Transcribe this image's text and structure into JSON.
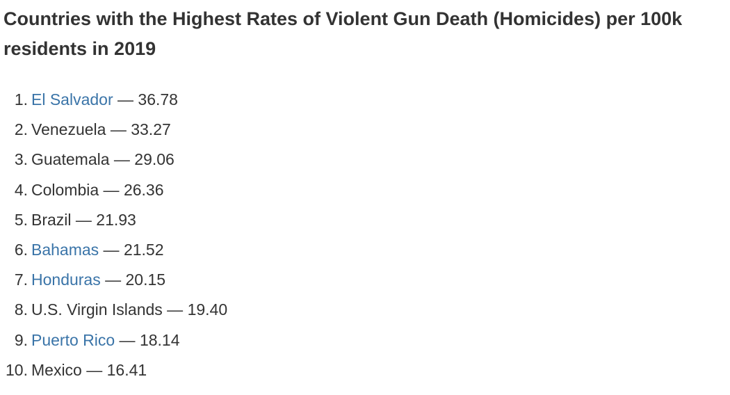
{
  "title": "Countries with the Highest Rates of Violent Gun Death (Homicides) per 100k residents in 2019",
  "separator": " — ",
  "items": [
    {
      "rank": "1.",
      "country": "El Salvador",
      "rate": "36.78",
      "link": true
    },
    {
      "rank": "2.",
      "country": "Venezuela",
      "rate": "33.27",
      "link": false
    },
    {
      "rank": "3.",
      "country": "Guatemala",
      "rate": "29.06",
      "link": false
    },
    {
      "rank": "4.",
      "country": "Colombia",
      "rate": "26.36",
      "link": false
    },
    {
      "rank": "5.",
      "country": "Brazil",
      "rate": "21.93",
      "link": false
    },
    {
      "rank": "6.",
      "country": "Bahamas",
      "rate": "21.52",
      "link": true
    },
    {
      "rank": "7.",
      "country": "Honduras",
      "rate": "20.15",
      "link": true
    },
    {
      "rank": "8.",
      "country": "U.S. Virgin Islands",
      "rate": "19.40",
      "link": false
    },
    {
      "rank": "9.",
      "country": "Puerto Rico",
      "rate": "18.14",
      "link": true
    },
    {
      "rank": "10.",
      "country": "Mexico",
      "rate": "16.41",
      "link": false
    }
  ],
  "colors": {
    "text": "#333333",
    "link": "#3a74a8",
    "background": "#ffffff"
  }
}
